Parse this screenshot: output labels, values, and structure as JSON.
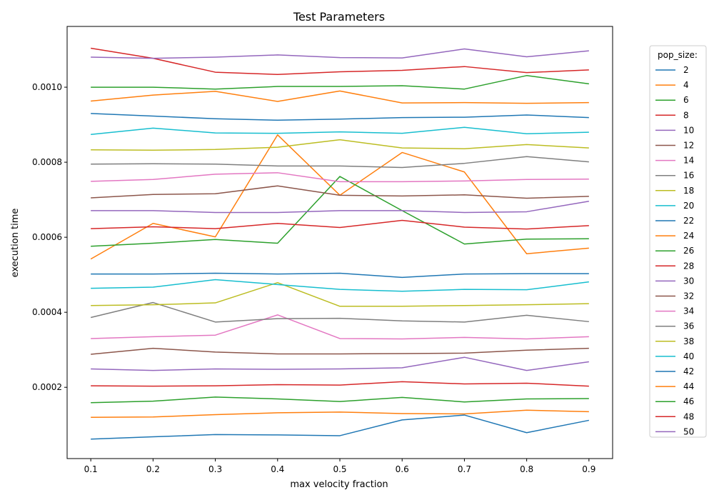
{
  "chart_data": {
    "type": "line",
    "title": "Test Parameters",
    "xlabel": "max velocity fraction",
    "ylabel": "execution time",
    "x": [
      0.1,
      0.2,
      0.3,
      0.4,
      0.5,
      0.6,
      0.7,
      0.8,
      0.9
    ],
    "x_ticks": [
      "0.1",
      "0.2",
      "0.3",
      "0.4",
      "0.5",
      "0.6",
      "0.7",
      "0.8",
      "0.9"
    ],
    "xlim": [
      0.062,
      0.938
    ],
    "y_ticks": [
      "0.0002",
      "0.0004",
      "0.0006",
      "0.0008",
      "0.0010"
    ],
    "ylim": [
      1e-05,
      0.001162
    ],
    "grid": false,
    "legend": {
      "title": "pop_size:",
      "placement": "right"
    },
    "series": [
      {
        "name": "2",
        "color": "#1f77b4",
        "values": [
          6.2e-05,
          6.8e-05,
          7.4e-05,
          7.3e-05,
          7.1e-05,
          0.000113,
          0.000126,
          7.9e-05,
          0.000112
        ]
      },
      {
        "name": "4",
        "color": "#ff7f0e",
        "values": [
          0.00012,
          0.000121,
          0.000127,
          0.000132,
          0.000134,
          0.00013,
          0.000129,
          0.000139,
          0.000135
        ]
      },
      {
        "name": "6",
        "color": "#2ca02c",
        "values": [
          0.000159,
          0.000163,
          0.000174,
          0.000169,
          0.000162,
          0.000173,
          0.000161,
          0.000169,
          0.00017
        ]
      },
      {
        "name": "8",
        "color": "#d62728",
        "values": [
          0.000204,
          0.000203,
          0.000204,
          0.000207,
          0.000206,
          0.000215,
          0.000209,
          0.000211,
          0.000203
        ]
      },
      {
        "name": "10",
        "color": "#9467bd",
        "values": [
          0.000249,
          0.000245,
          0.000249,
          0.000248,
          0.000249,
          0.000252,
          0.00028,
          0.000245,
          0.000268
        ]
      },
      {
        "name": "12",
        "color": "#8c564b",
        "values": [
          0.000288,
          0.000304,
          0.000294,
          0.000289,
          0.000289,
          0.00029,
          0.000291,
          0.000299,
          0.000304
        ]
      },
      {
        "name": "14",
        "color": "#e377c2",
        "values": [
          0.00033,
          0.000335,
          0.000339,
          0.000393,
          0.00033,
          0.000329,
          0.000333,
          0.000329,
          0.000335
        ]
      },
      {
        "name": "16",
        "color": "#7f7f7f",
        "values": [
          0.000386,
          0.000426,
          0.000374,
          0.000383,
          0.000384,
          0.000377,
          0.000374,
          0.000392,
          0.000375
        ]
      },
      {
        "name": "18",
        "color": "#bcbd22",
        "values": [
          0.000418,
          0.00042,
          0.000425,
          0.000479,
          0.000416,
          0.000416,
          0.000418,
          0.00042,
          0.000423
        ]
      },
      {
        "name": "20",
        "color": "#17becf",
        "values": [
          0.000464,
          0.000467,
          0.000487,
          0.000474,
          0.000461,
          0.000456,
          0.000461,
          0.00046,
          0.000481
        ]
      },
      {
        "name": "22",
        "color": "#1f77b4",
        "values": [
          0.000502,
          0.000502,
          0.000504,
          0.000502,
          0.000504,
          0.000493,
          0.000502,
          0.000503,
          0.000503
        ]
      },
      {
        "name": "24",
        "color": "#ff7f0e",
        "values": [
          0.000542,
          0.000637,
          0.000601,
          0.000873,
          0.000712,
          0.000826,
          0.000774,
          0.000556,
          0.000571
        ]
      },
      {
        "name": "26",
        "color": "#2ca02c",
        "values": [
          0.000576,
          0.000584,
          0.000594,
          0.000584,
          0.000762,
          0.000671,
          0.000582,
          0.000595,
          0.000596
        ]
      },
      {
        "name": "28",
        "color": "#d62728",
        "values": [
          0.000623,
          0.000628,
          0.000623,
          0.000637,
          0.000626,
          0.000645,
          0.000627,
          0.000622,
          0.000631
        ]
      },
      {
        "name": "30",
        "color": "#9467bd",
        "values": [
          0.000671,
          0.000671,
          0.000666,
          0.000666,
          0.000671,
          0.000671,
          0.000666,
          0.000668,
          0.000696
        ]
      },
      {
        "name": "32",
        "color": "#8c564b",
        "values": [
          0.000705,
          0.000714,
          0.000716,
          0.000737,
          0.000712,
          0.00071,
          0.000713,
          0.000704,
          0.000709
        ]
      },
      {
        "name": "34",
        "color": "#e377c2",
        "values": [
          0.000749,
          0.000754,
          0.000768,
          0.000772,
          0.000748,
          0.000748,
          0.00075,
          0.000754,
          0.000755
        ]
      },
      {
        "name": "36",
        "color": "#7f7f7f",
        "values": [
          0.000795,
          0.000796,
          0.000795,
          0.00079,
          0.00079,
          0.000786,
          0.000797,
          0.000815,
          0.000801
        ]
      },
      {
        "name": "38",
        "color": "#bcbd22",
        "values": [
          0.000833,
          0.000832,
          0.000834,
          0.00084,
          0.00086,
          0.000838,
          0.000836,
          0.000847,
          0.000838
        ]
      },
      {
        "name": "40",
        "color": "#17becf",
        "values": [
          0.000874,
          0.000891,
          0.000878,
          0.000877,
          0.000881,
          0.000877,
          0.000893,
          0.000876,
          0.00088
        ]
      },
      {
        "name": "42",
        "color": "#1f77b4",
        "values": [
          0.00093,
          0.000923,
          0.000916,
          0.000912,
          0.000915,
          0.000919,
          0.00092,
          0.000926,
          0.000919
        ]
      },
      {
        "name": "44",
        "color": "#ff7f0e",
        "values": [
          0.000963,
          0.000979,
          0.000989,
          0.000962,
          0.00099,
          0.000958,
          0.000959,
          0.000957,
          0.000959
        ]
      },
      {
        "name": "46",
        "color": "#2ca02c",
        "values": [
          0.001,
          0.001,
          0.000995,
          0.001002,
          0.001002,
          0.001004,
          0.000995,
          0.001031,
          0.001009
        ]
      },
      {
        "name": "48",
        "color": "#d62728",
        "values": [
          0.001104,
          0.001077,
          0.00104,
          0.001034,
          0.001041,
          0.001045,
          0.001055,
          0.001039,
          0.001046
        ]
      },
      {
        "name": "50",
        "color": "#9467bd",
        "values": [
          0.00108,
          0.001077,
          0.00108,
          0.001086,
          0.001079,
          0.001078,
          0.001102,
          0.001081,
          0.001097
        ]
      }
    ]
  }
}
